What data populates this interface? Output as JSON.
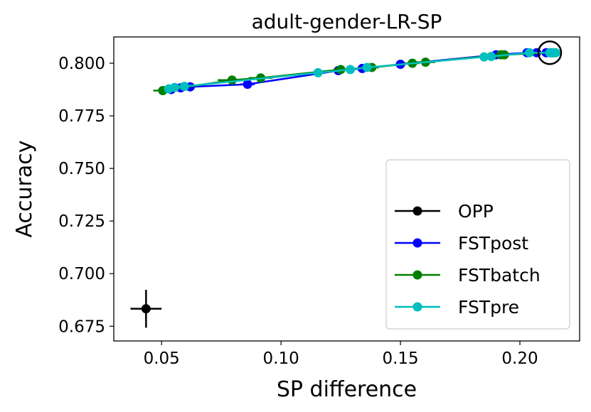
{
  "chart_data": {
    "type": "line",
    "title": "adult-gender-LR-SP",
    "xlabel": "SP difference",
    "ylabel": "Accuracy",
    "xlim": [
      0.03,
      0.225
    ],
    "ylim": [
      0.668,
      0.8125
    ],
    "xticks": [
      0.05,
      0.1,
      0.15,
      0.2
    ],
    "xtick_labels": [
      "0.05",
      "0.10",
      "0.15",
      "0.20"
    ],
    "yticks": [
      0.675,
      0.7,
      0.725,
      0.75,
      0.775,
      0.8
    ],
    "ytick_labels": [
      "0.675",
      "0.700",
      "0.725",
      "0.750",
      "0.775",
      "0.800"
    ],
    "legend_position": "lower-right",
    "series": [
      {
        "name": "OPP",
        "color": "#000000",
        "x": [
          0.0435
        ],
        "y": [
          0.6833
        ],
        "xerr": [
          0.0065
        ],
        "yerr": [
          0.009
        ]
      },
      {
        "name": "FSTpost",
        "color": "#0000ff",
        "x": [
          0.054,
          0.058,
          0.062,
          0.086,
          0.124,
          0.134,
          0.15,
          0.19,
          0.203,
          0.207,
          0.211,
          0.2135
        ],
        "y": [
          0.7875,
          0.7883,
          0.7888,
          0.79,
          0.7965,
          0.7975,
          0.7995,
          0.804,
          0.805,
          0.805,
          0.805,
          0.805
        ],
        "xerr": [
          0.002,
          0.002,
          0.002,
          0.003,
          0.002,
          0.002,
          0.002,
          0.002,
          0.001,
          0.001,
          0.001,
          0.001
        ]
      },
      {
        "name": "FSTbatch",
        "color": "#008000",
        "x": [
          0.0505,
          0.0795,
          0.0915,
          0.125,
          0.138,
          0.155,
          0.1605,
          0.192,
          0.1935,
          0.2125,
          0.2145
        ],
        "y": [
          0.787,
          0.792,
          0.793,
          0.797,
          0.798,
          0.8,
          0.8005,
          0.804,
          0.804,
          0.805,
          0.805
        ],
        "xerr": [
          0.004,
          0.006,
          0.005,
          0.003,
          0.003,
          0.003,
          0.004,
          0.002,
          0.002,
          0.001,
          0.001
        ]
      },
      {
        "name": "FSTpre",
        "color": "#00bfbf",
        "x": [
          0.053,
          0.0555,
          0.0595,
          0.1155,
          0.129,
          0.136,
          0.185,
          0.188,
          0.204,
          0.2125,
          0.214,
          0.215
        ],
        "y": [
          0.7878,
          0.7885,
          0.789,
          0.7955,
          0.797,
          0.798,
          0.803,
          0.8032,
          0.805,
          0.805,
          0.805,
          0.805
        ],
        "xerr": [
          0.002,
          0.002,
          0.002,
          0.002,
          0.002,
          0.002,
          0.002,
          0.002,
          0.001,
          0.001,
          0.001,
          0.001
        ]
      }
    ],
    "annotations": [
      {
        "type": "circle-marker",
        "x": 0.2125,
        "y": 0.805
      }
    ]
  }
}
